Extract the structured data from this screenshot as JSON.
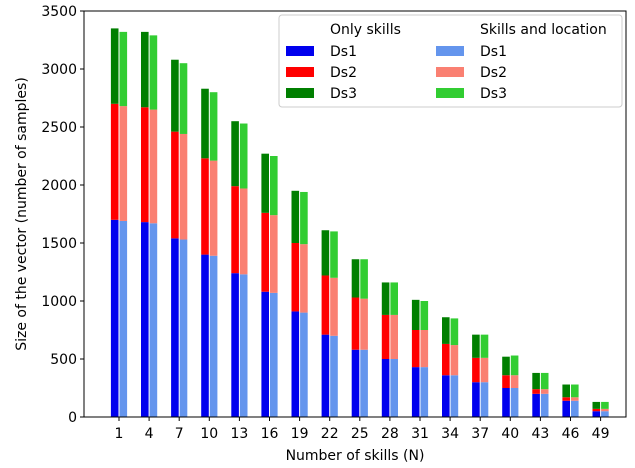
{
  "chart_data": {
    "type": "bar",
    "stacked": true,
    "grouped": true,
    "xlabel": "Number of skills (N)",
    "ylabel": "Size of the vector (number of samples)",
    "ylim": [
      0,
      3500
    ],
    "yticks": [
      0,
      500,
      1000,
      1500,
      2000,
      2500,
      3000,
      3500
    ],
    "categories": [
      "1",
      "4",
      "7",
      "10",
      "13",
      "16",
      "19",
      "22",
      "25",
      "28",
      "31",
      "34",
      "37",
      "40",
      "43",
      "46",
      "49"
    ],
    "legend_position": "top-right",
    "legend": {
      "groups": [
        {
          "title": "Only skills",
          "entries": [
            "Ds1",
            "Ds2",
            "Ds3"
          ],
          "colors": [
            "#0000ee",
            "#ff0000",
            "#007f00"
          ]
        },
        {
          "title": "Skills and location",
          "entries": [
            "Ds1",
            "Ds2",
            "Ds3"
          ],
          "colors": [
            "#6495ed",
            "#fa8072",
            "#32cd32"
          ]
        }
      ]
    },
    "groups": [
      {
        "name": "Only skills",
        "series": [
          {
            "name": "Ds1",
            "color": "#0000ee",
            "values": [
              1700,
              1680,
              1540,
              1400,
              1240,
              1080,
              910,
              710,
              580,
              500,
              430,
              360,
              300,
              250,
              200,
              140,
              50
            ]
          },
          {
            "name": "Ds2",
            "color": "#ff0000",
            "values": [
              1000,
              990,
              920,
              830,
              750,
              680,
              590,
              510,
              450,
              380,
              320,
              270,
              210,
              110,
              40,
              30,
              20
            ]
          },
          {
            "name": "Ds3",
            "color": "#007f00",
            "values": [
              650,
              650,
              620,
              600,
              560,
              510,
              450,
              390,
              330,
              280,
              260,
              230,
              200,
              160,
              140,
              110,
              60
            ]
          }
        ]
      },
      {
        "name": "Skills and location",
        "series": [
          {
            "name": "Ds1",
            "color": "#6495ed",
            "values": [
              1690,
              1670,
              1530,
              1390,
              1230,
              1070,
              900,
              700,
              580,
              500,
              430,
              360,
              300,
              250,
              200,
              140,
              50
            ]
          },
          {
            "name": "Ds2",
            "color": "#fa8072",
            "values": [
              990,
              980,
              910,
              820,
              740,
              670,
              590,
              500,
              440,
              380,
              320,
              260,
              210,
              110,
              40,
              30,
              20
            ]
          },
          {
            "name": "Ds3",
            "color": "#32cd32",
            "values": [
              640,
              640,
              610,
              590,
              560,
              510,
              450,
              400,
              340,
              280,
              250,
              230,
              200,
              170,
              140,
              110,
              60
            ]
          }
        ]
      }
    ]
  }
}
